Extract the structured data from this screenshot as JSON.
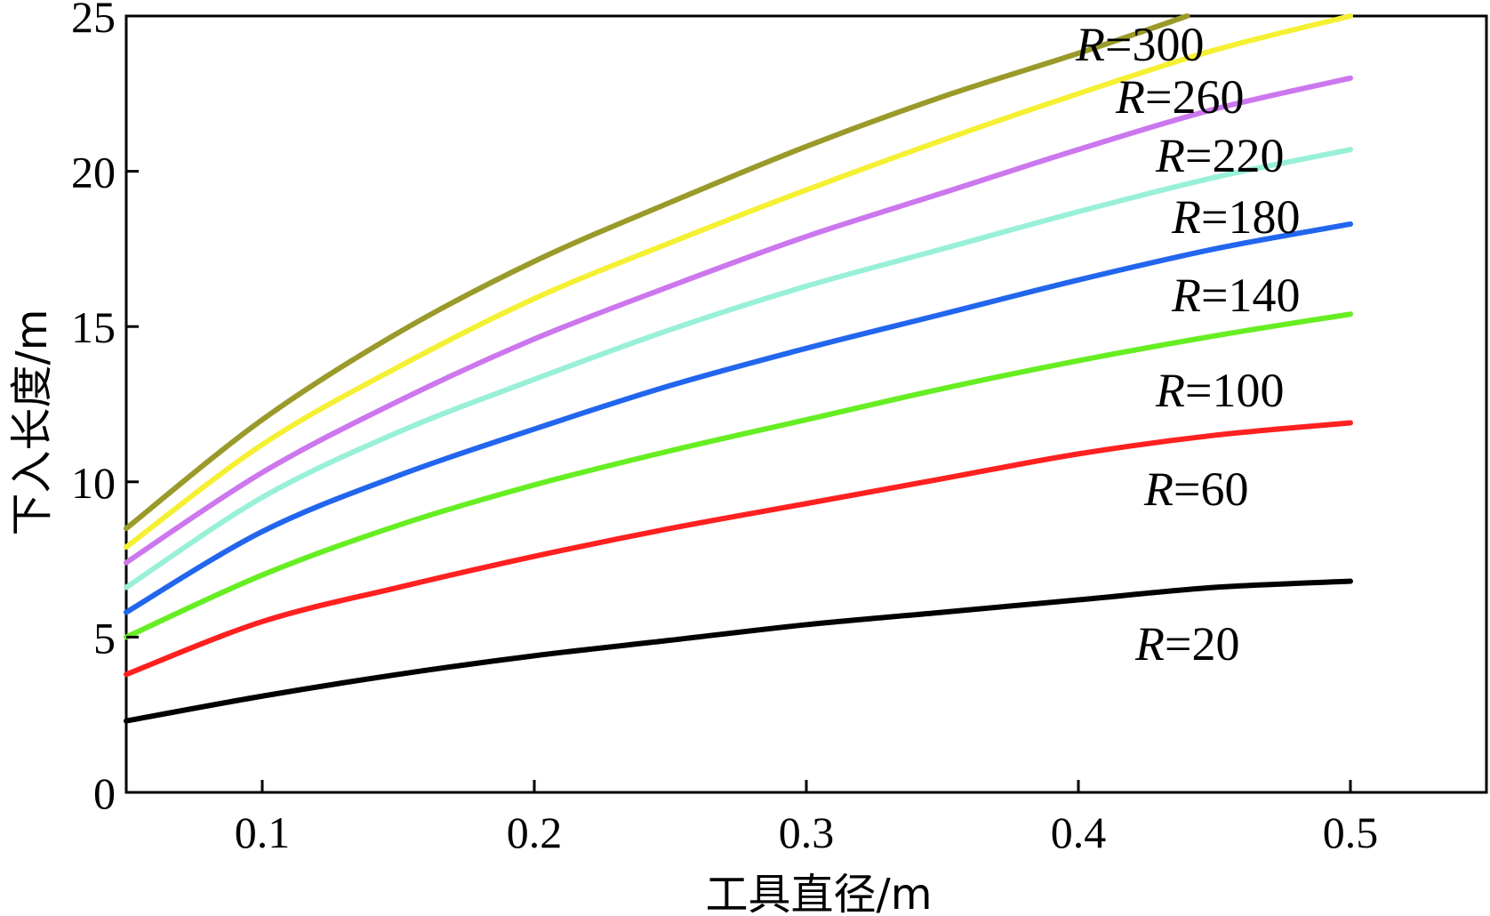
{
  "chart_data": {
    "type": "line",
    "xlabel": "工具直径/m",
    "ylabel": "下入长度/m",
    "xlim": [
      0.05,
      0.55
    ],
    "ylim": [
      0,
      25
    ],
    "xticks": [
      0.1,
      0.2,
      0.3,
      0.4,
      0.5
    ],
    "xtick_labels": [
      "0.1",
      "0.2",
      "0.3",
      "0.4",
      "0.5"
    ],
    "yticks": [
      0,
      5,
      10,
      15,
      20,
      25
    ],
    "ytick_labels": [
      "0",
      "5",
      "10",
      "15",
      "20",
      "25"
    ],
    "grid": false,
    "legend": "inline labels at right end of each curve",
    "series": [
      {
        "name": "R=20",
        "label_r": "R",
        "label_eq": "=20",
        "color": "#000000",
        "x": [
          0.05,
          0.1,
          0.15,
          0.2,
          0.25,
          0.3,
          0.35,
          0.4,
          0.45,
          0.5
        ],
        "y": [
          2.3,
          3.1,
          3.8,
          4.4,
          4.9,
          5.4,
          5.8,
          6.2,
          6.6,
          6.8
        ]
      },
      {
        "name": "R=60",
        "label_r": "R",
        "label_eq": "=60",
        "color": "#ff2020",
        "x": [
          0.05,
          0.1,
          0.15,
          0.2,
          0.25,
          0.3,
          0.35,
          0.4,
          0.45,
          0.5
        ],
        "y": [
          3.8,
          5.5,
          6.6,
          7.6,
          8.5,
          9.3,
          10.1,
          10.9,
          11.5,
          11.9
        ]
      },
      {
        "name": "R=100",
        "label_r": "R",
        "label_eq": "=100",
        "color": "#66ee22",
        "x": [
          0.05,
          0.1,
          0.15,
          0.2,
          0.25,
          0.3,
          0.35,
          0.4,
          0.45,
          0.5
        ],
        "y": [
          5.0,
          7.0,
          8.6,
          9.9,
          11.0,
          12.0,
          13.0,
          13.9,
          14.7,
          15.4
        ]
      },
      {
        "name": "R=140",
        "label_r": "R",
        "label_eq": "=140",
        "color": "#2266ee",
        "x": [
          0.05,
          0.1,
          0.15,
          0.2,
          0.25,
          0.3,
          0.35,
          0.4,
          0.45,
          0.5
        ],
        "y": [
          5.8,
          8.4,
          10.2,
          11.7,
          13.1,
          14.3,
          15.4,
          16.5,
          17.5,
          18.3
        ]
      },
      {
        "name": "R=180",
        "label_r": "R",
        "label_eq": "=180",
        "color": "#99f0d8",
        "x": [
          0.05,
          0.1,
          0.15,
          0.2,
          0.25,
          0.3,
          0.35,
          0.4,
          0.45,
          0.5
        ],
        "y": [
          6.6,
          9.5,
          11.6,
          13.3,
          14.9,
          16.3,
          17.5,
          18.7,
          19.8,
          20.7
        ]
      },
      {
        "name": "R=220",
        "label_r": "R",
        "label_eq": "=220",
        "color": "#cc77ee",
        "x": [
          0.05,
          0.1,
          0.15,
          0.2,
          0.25,
          0.3,
          0.35,
          0.4,
          0.45,
          0.5
        ],
        "y": [
          7.4,
          10.3,
          12.6,
          14.6,
          16.3,
          17.9,
          19.3,
          20.7,
          22.0,
          23.0
        ]
      },
      {
        "name": "R=260",
        "label_r": "R",
        "label_eq": "=260",
        "color": "#f5f033",
        "x": [
          0.05,
          0.1,
          0.15,
          0.2,
          0.25,
          0.3,
          0.35,
          0.4,
          0.45,
          0.5
        ],
        "y": [
          7.9,
          11.2,
          13.7,
          15.9,
          17.7,
          19.4,
          21.0,
          22.5,
          23.9,
          25.0
        ]
      },
      {
        "name": "R=300",
        "label_r": "R",
        "label_eq": "=300",
        "color": "#9a9a2a",
        "x": [
          0.05,
          0.1,
          0.15,
          0.2,
          0.25,
          0.3,
          0.35,
          0.4,
          0.44
        ],
        "y": [
          8.5,
          12.0,
          14.8,
          17.1,
          19.0,
          20.8,
          22.4,
          23.8,
          25.0
        ]
      }
    ]
  }
}
